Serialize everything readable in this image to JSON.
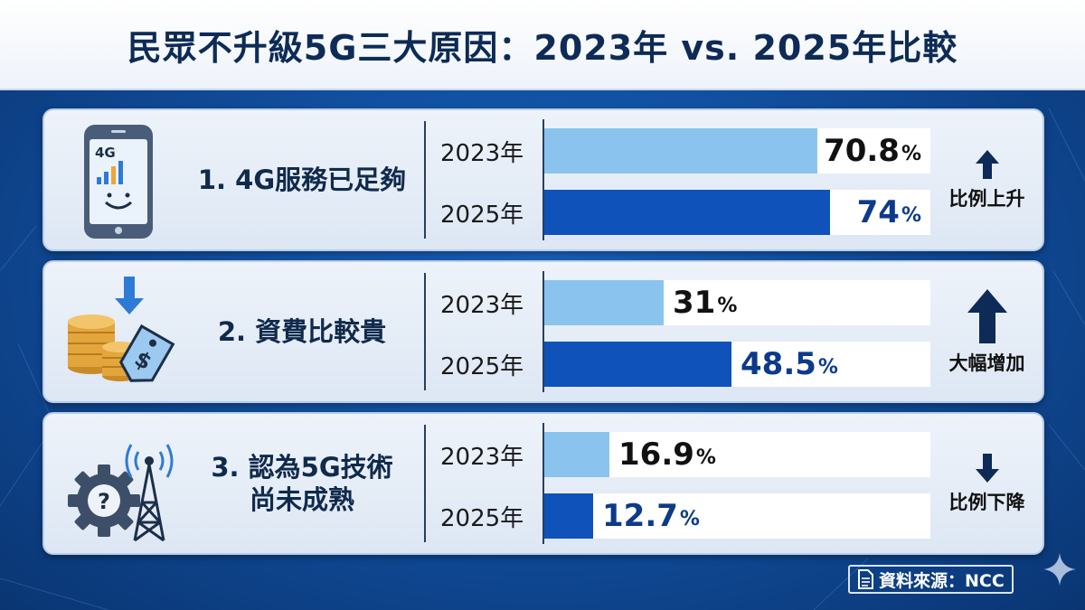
{
  "title": "民眾不升級5G三大原因：2023年 vs. 2025年比較",
  "source_text": "資料來源：NCC",
  "colors": {
    "bar_2023": "#8ac4ee",
    "bar_2025": "#0f52ba",
    "title_text": "#0d2b56",
    "background": "#114f9f"
  },
  "panels": [
    {
      "line1": "1. 4G服務已足夠",
      "line2": "",
      "icon": "smartphone-4g-icon",
      "icon_text": "4G",
      "label_2023": "2023年",
      "label_2025": "2025年",
      "value_2023": "70.8",
      "value_2025": "74",
      "unit": "%",
      "trend": "比例上升",
      "trend_icon": "arrow-up-small-icon"
    },
    {
      "line1": "2. 資費比較貴",
      "line2": "",
      "icon": "coins-price-tag-icon",
      "icon_text": "$",
      "label_2023": "2023年",
      "label_2025": "2025年",
      "value_2023": "31",
      "value_2025": "48.5",
      "unit": "%",
      "trend": "大幅增加",
      "trend_icon": "arrow-up-large-icon"
    },
    {
      "line1": "3. 認為5G技術",
      "line2": "尚未成熟",
      "icon": "gear-question-tower-icon",
      "icon_text": "?",
      "label_2023": "2023年",
      "label_2025": "2025年",
      "value_2023": "16.9",
      "value_2025": "12.7",
      "unit": "%",
      "trend": "比例下降",
      "trend_icon": "arrow-down-small-icon"
    }
  ],
  "chart_data": {
    "type": "bar",
    "orientation": "horizontal",
    "title": "民眾不升級5G三大原因：2023年 vs. 2025年比較",
    "categories": [
      "1. 4G服務已足夠",
      "2. 資費比較貴",
      "3. 認為5G技術尚未成熟"
    ],
    "series": [
      {
        "name": "2023年",
        "values": [
          70.8,
          31,
          16.9
        ]
      },
      {
        "name": "2025年",
        "values": [
          74,
          48.5,
          12.7
        ]
      }
    ],
    "unit": "%",
    "xlim": [
      0,
      100
    ],
    "grid": false,
    "annotations": [
      "比例上升",
      "大幅增加",
      "比例下降"
    ]
  }
}
